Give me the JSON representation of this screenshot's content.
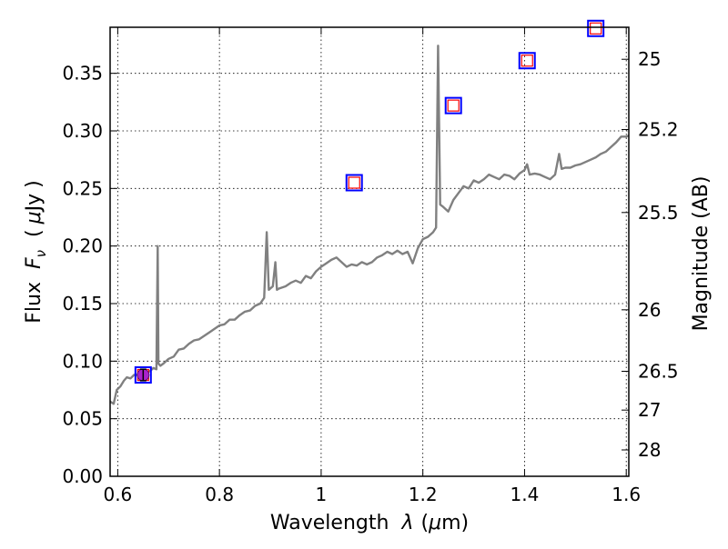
{
  "chart_data": {
    "type": "line",
    "xlabel": "Wavelength",
    "xlabel_math": "λ",
    "xlabel_unit_open": "(",
    "xlabel_unit_mu": "μ",
    "xlabel_unit_rest": "m)",
    "ylabel": "Flux",
    "ylabel_math_F": "F",
    "ylabel_math_sub": "ν",
    "ylabel_unit_open": "(",
    "ylabel_unit_mu": "μ",
    "ylabel_unit_rest": "Jy",
    "ylabel_unit_close": ")",
    "y2label": "Magnitude (AB)",
    "xlim": [
      0.585,
      1.605
    ],
    "ylim": [
      0.0,
      0.39
    ],
    "grid": true,
    "grid_style": "dotted",
    "x_ticks": [
      {
        "value": 0.6,
        "label": "0.6"
      },
      {
        "value": 0.8,
        "label": "0.8"
      },
      {
        "value": 1.0,
        "label": "1"
      },
      {
        "value": 1.2,
        "label": "1.2"
      },
      {
        "value": 1.4,
        "label": "1.4"
      },
      {
        "value": 1.6,
        "label": "1.6"
      }
    ],
    "y_ticks": [
      {
        "value": 0.0,
        "label": "0.00"
      },
      {
        "value": 0.05,
        "label": "0.05"
      },
      {
        "value": 0.1,
        "label": "0.10"
      },
      {
        "value": 0.15,
        "label": "0.15"
      },
      {
        "value": 0.2,
        "label": "0.20"
      },
      {
        "value": 0.25,
        "label": "0.25"
      },
      {
        "value": 0.3,
        "label": "0.30"
      },
      {
        "value": 0.35,
        "label": "0.35"
      }
    ],
    "y2_ticks": [
      {
        "flux": 0.3622,
        "label": "25"
      },
      {
        "flux": 0.3012,
        "label": "25.2"
      },
      {
        "flux": 0.2291,
        "label": "25.5"
      },
      {
        "flux": 0.1446,
        "label": "26"
      },
      {
        "flux": 0.0912,
        "label": "26.5"
      },
      {
        "flux": 0.0575,
        "label": "27"
      },
      {
        "flux": 0.0229,
        "label": "28"
      }
    ],
    "series": [
      {
        "style": "spectrum",
        "color": "#808080",
        "x": [
          0.585,
          0.592,
          0.598,
          0.605,
          0.612,
          0.618,
          0.625,
          0.632,
          0.638,
          0.645,
          0.652,
          0.658,
          0.665,
          0.67,
          0.676,
          0.6785,
          0.68,
          0.684,
          0.69,
          0.7,
          0.71,
          0.72,
          0.73,
          0.74,
          0.75,
          0.76,
          0.77,
          0.78,
          0.79,
          0.8,
          0.81,
          0.82,
          0.83,
          0.84,
          0.85,
          0.86,
          0.87,
          0.88,
          0.888,
          0.893,
          0.897,
          0.905,
          0.91,
          0.913,
          0.917,
          0.93,
          0.94,
          0.95,
          0.96,
          0.97,
          0.98,
          0.99,
          1.0,
          1.01,
          1.02,
          1.03,
          1.04,
          1.05,
          1.06,
          1.07,
          1.08,
          1.09,
          1.1,
          1.11,
          1.12,
          1.13,
          1.14,
          1.15,
          1.16,
          1.17,
          1.18,
          1.19,
          1.2,
          1.21,
          1.22,
          1.226,
          1.23,
          1.234,
          1.24,
          1.25,
          1.26,
          1.27,
          1.28,
          1.29,
          1.3,
          1.31,
          1.32,
          1.33,
          1.34,
          1.35,
          1.36,
          1.37,
          1.38,
          1.39,
          1.4,
          1.405,
          1.41,
          1.42,
          1.43,
          1.44,
          1.45,
          1.46,
          1.468,
          1.473,
          1.48,
          1.49,
          1.5,
          1.51,
          1.52,
          1.53,
          1.54,
          1.55,
          1.56,
          1.57,
          1.58,
          1.59,
          1.6,
          1.605
        ],
        "y": [
          0.065,
          0.063,
          0.075,
          0.078,
          0.083,
          0.086,
          0.085,
          0.088,
          0.088,
          0.091,
          0.088,
          0.09,
          0.092,
          0.094,
          0.093,
          0.2,
          0.098,
          0.096,
          0.098,
          0.102,
          0.104,
          0.11,
          0.111,
          0.115,
          0.118,
          0.119,
          0.122,
          0.125,
          0.128,
          0.131,
          0.132,
          0.136,
          0.136,
          0.14,
          0.143,
          0.144,
          0.148,
          0.15,
          0.155,
          0.212,
          0.162,
          0.165,
          0.186,
          0.162,
          0.163,
          0.165,
          0.168,
          0.17,
          0.168,
          0.174,
          0.172,
          0.178,
          0.182,
          0.185,
          0.188,
          0.19,
          0.186,
          0.182,
          0.184,
          0.183,
          0.186,
          0.184,
          0.186,
          0.19,
          0.192,
          0.195,
          0.193,
          0.196,
          0.193,
          0.195,
          0.185,
          0.198,
          0.206,
          0.208,
          0.212,
          0.216,
          0.374,
          0.236,
          0.234,
          0.23,
          0.24,
          0.246,
          0.252,
          0.25,
          0.257,
          0.255,
          0.258,
          0.262,
          0.26,
          0.258,
          0.262,
          0.261,
          0.258,
          0.263,
          0.266,
          0.271,
          0.262,
          0.263,
          0.262,
          0.26,
          0.258,
          0.262,
          0.28,
          0.267,
          0.268,
          0.268,
          0.27,
          0.271,
          0.273,
          0.275,
          0.277,
          0.28,
          0.282,
          0.286,
          0.29,
          0.295,
          0.295,
          0.296
        ]
      },
      {
        "style": "photometry-points",
        "x": [
          0.65,
          1.065,
          1.26,
          1.405,
          1.54
        ],
        "y": [
          0.088,
          0.255,
          0.322,
          0.361,
          0.389
        ],
        "outer_marker_color": "#0000ff",
        "inner_marker_color": "#ff0000"
      },
      {
        "style": "measured-point",
        "x": [
          0.65
        ],
        "y": [
          0.088
        ],
        "yerr": [
          0.005
        ],
        "marker_color": "#aa22cc"
      }
    ]
  }
}
